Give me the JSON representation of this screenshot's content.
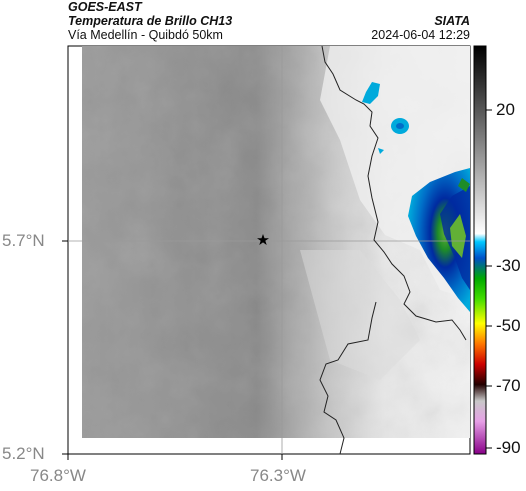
{
  "header": {
    "satellite": "GOES-EAST",
    "product": "Temperatura de Brillo CH13",
    "route": "Vía Medellín - Quibdó 50km",
    "org": "SIATA",
    "datetime": "2024-06-04 12:29"
  },
  "axes": {
    "lat_labels": [
      "5.7°N",
      "5.2°N"
    ],
    "lon_labels": [
      "76.8°W",
      "76.3°W"
    ]
  },
  "colorbar": {
    "ticks": [
      "20",
      "-30",
      "-50",
      "-70",
      "-90"
    ]
  },
  "map": {
    "marker": "star",
    "gridlines": true,
    "cloud_colors": [
      "#002aa0",
      "#006ec8",
      "#00aadc",
      "#1e8c28",
      "#62b036"
    ]
  }
}
